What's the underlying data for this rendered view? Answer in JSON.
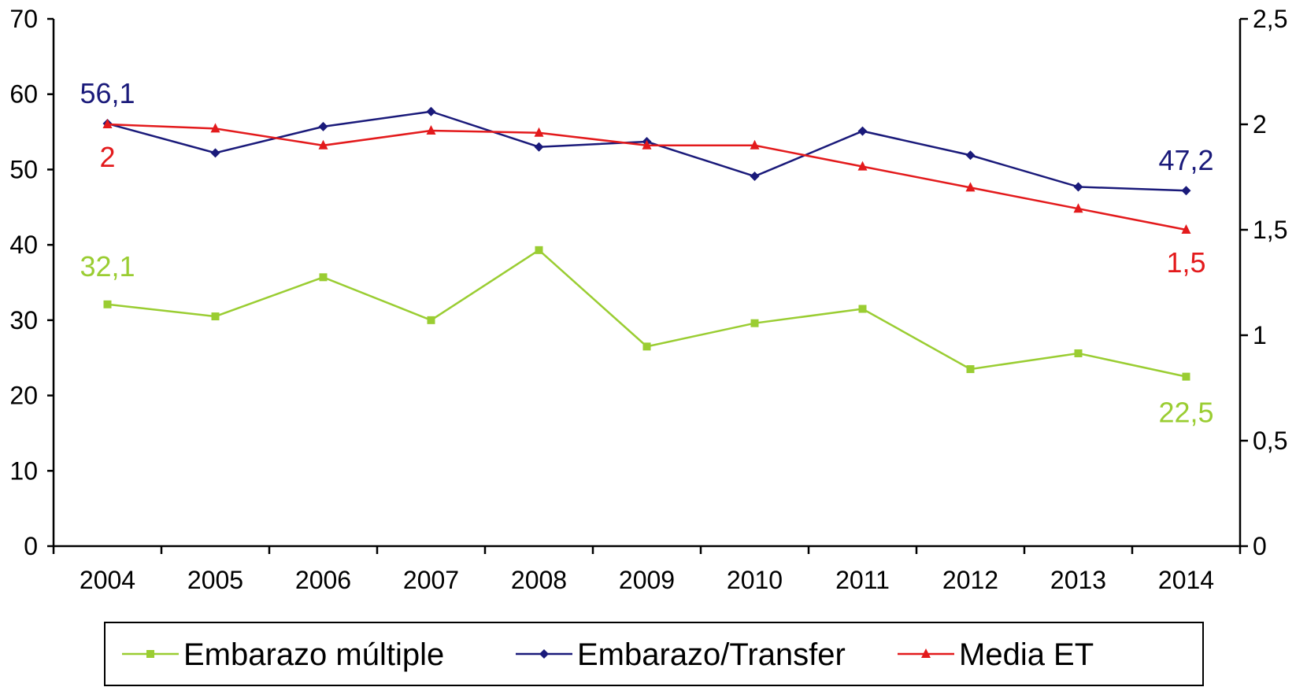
{
  "chart_data": {
    "type": "line",
    "title": "",
    "xlabel": "",
    "ylabel_left": "",
    "ylabel_right": "",
    "categories": [
      "2004",
      "2005",
      "2006",
      "2007",
      "2008",
      "2009",
      "2010",
      "2011",
      "2012",
      "2013",
      "2014"
    ],
    "y_left": {
      "range": [
        0,
        70
      ],
      "ticks": [
        0,
        10,
        20,
        30,
        40,
        50,
        60,
        70
      ],
      "tick_labels": [
        "0",
        "10",
        "20",
        "30",
        "40",
        "50",
        "60",
        "70"
      ]
    },
    "y_right": {
      "range": [
        0,
        2.5
      ],
      "ticks": [
        0,
        0.5,
        1,
        1.5,
        2,
        2.5
      ],
      "tick_labels": [
        "0",
        "0,5",
        "1",
        "1,5",
        "2",
        "2,5"
      ]
    },
    "grid": false,
    "legend_position": "bottom",
    "series": [
      {
        "name": "Embarazo múltiple",
        "axis": "left",
        "color": "#9acd32",
        "marker": "square",
        "values": [
          32.1,
          30.5,
          35.7,
          30.0,
          39.3,
          26.5,
          29.6,
          31.5,
          23.5,
          25.6,
          22.5
        ],
        "labels": [
          {
            "index": 0,
            "text": "32,1",
            "position": "above"
          },
          {
            "index": 10,
            "text": "22,5",
            "position": "below"
          }
        ]
      },
      {
        "name": "Embarazo/Transfer",
        "axis": "left",
        "color": "#1a1a7a",
        "marker": "diamond",
        "values": [
          56.1,
          52.2,
          55.7,
          57.7,
          53.0,
          53.7,
          49.1,
          55.1,
          51.9,
          47.7,
          47.2
        ],
        "labels": [
          {
            "index": 0,
            "text": "56,1",
            "position": "above"
          },
          {
            "index": 10,
            "text": "47,2",
            "position": "above"
          }
        ]
      },
      {
        "name": "Media ET",
        "axis": "right",
        "color": "#e31a1c",
        "marker": "triangle",
        "values": [
          2.0,
          1.98,
          1.9,
          1.97,
          1.96,
          1.9,
          1.9,
          1.8,
          1.7,
          1.6,
          1.5
        ],
        "labels": [
          {
            "index": 0,
            "text": "2",
            "position": "below"
          },
          {
            "index": 10,
            "text": "1,5",
            "position": "below"
          }
        ]
      }
    ]
  }
}
